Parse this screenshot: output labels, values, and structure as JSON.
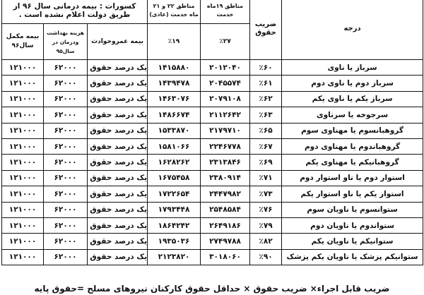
{
  "header": {
    "grade": "درجه",
    "coefficient": "ضریب حقوق",
    "regions_19": "مناطق ۱۹ماه خدمت",
    "regions_22_21": "مناطق ۲۲ و ۲۱ ماه خدمت (عادی)",
    "deductions": "کسورات : بیمه درمانی سال ۹۶ از طریق دولت اعلام نشده است .",
    "pct_27": "٪۲۷",
    "pct_19": "٪۱۹",
    "life_insurance": "بیمه عمروحوادث",
    "health_cost": "هزینه بهداشت ودرمان در سال۹۵",
    "supplementary": "بیمه مکمل سال۹۶"
  },
  "rows": [
    {
      "grade": "سرباز یا ناوی",
      "coef": "٪۶۰",
      "r19": "۲۰۱۲۰۴۰",
      "r22": "۱۴۱۵۸۸۰",
      "life": "یک درصد حقوق پایه",
      "health": "۶۲۰۰۰",
      "supp": "۱۲۱۰۰۰"
    },
    {
      "grade": "سرباز دوم یا ناوی دوم",
      "coef": "٪۶۱",
      "r19": "۲۰۴۵۵۷۴",
      "r22": "۱۴۳۹۴۷۸",
      "life": "یک درصد حقوق پایه",
      "health": "۶۲۰۰۰",
      "supp": "۱۲۱۰۰۰"
    },
    {
      "grade": "سرباز یکم یا ناوی یکم",
      "coef": "٪۶۲",
      "r19": "۲۰۷۹۱۰۸",
      "r22": "۱۴۶۳۰۷۶",
      "life": "یک درصد حقوق پایه",
      "health": "۶۲۰۰۰",
      "supp": "۱۲۱۰۰۰"
    },
    {
      "grade": "سرجوخه یا سرناوی",
      "coef": "٪۶۳",
      "r19": "۲۱۱۲۶۴۲",
      "r22": "۱۴۸۶۶۷۴",
      "life": "یک درصد حقوق پایه",
      "health": "۶۲۰۰۰",
      "supp": "۱۲۱۰۰۰"
    },
    {
      "grade": "گروهبانسوم یا مهناوی سوم",
      "coef": "٪۶۵",
      "r19": "۲۱۷۹۷۱۰",
      "r22": "۱۵۳۳۸۷۰",
      "life": "یک درصد حقوق پایه",
      "health": "۶۲۰۰۰",
      "supp": "۱۲۱۰۰۰"
    },
    {
      "grade": "گروهباندوم یا مهناوی دوم",
      "coef": "٪۶۷",
      "r19": "۲۲۴۶۷۷۸",
      "r22": "۱۵۸۱۰۶۶",
      "life": "یک درصد حقوق پایه",
      "health": "۶۲۰۰۰",
      "supp": "۱۲۱۰۰۰"
    },
    {
      "grade": "گروهبانیکم یا مهناوی یکم",
      "coef": "٪۶۹",
      "r19": "۲۳۱۳۸۴۶",
      "r22": "۱۶۲۸۲۶۲",
      "life": "یک درصد حقوق پایه",
      "health": "۶۲۰۰۰",
      "supp": "۱۲۱۰۰۰"
    },
    {
      "grade": "استوار دوم یا ناو استوار دوم",
      "coef": "٪۷۱",
      "r19": "۲۳۸۰۹۱۴",
      "r22": "۱۶۷۵۴۵۸",
      "life": "یک درصد حقوق پایه",
      "health": "۶۲۰۰۰",
      "supp": "۱۲۱۰۰۰"
    },
    {
      "grade": "استوار یکم یا ناو استوار یکم",
      "coef": "٪۷۳",
      "r19": "۲۴۴۷۹۸۲",
      "r22": "۱۷۲۲۶۵۴",
      "life": "یک درصد حقوق پایه",
      "health": "۶۲۰۰۰",
      "supp": "۱۲۱۰۰۰"
    },
    {
      "grade": "ستوانسوم یا ناویان سوم",
      "coef": "٪۷۶",
      "r19": "۲۵۴۸۵۸۴",
      "r22": "۱۷۹۳۴۴۸",
      "life": "یک درصد حقوق پایه",
      "health": "۶۲۰۰۰",
      "supp": "۱۲۱۰۰۰"
    },
    {
      "grade": "ستواندوم یا ناویان دوم",
      "coef": "٪۷۹",
      "r19": "۲۶۴۹۱۸۶",
      "r22": "۱۸۶۴۲۴۲",
      "life": "یک درصد حقوق پایه",
      "health": "۶۲۰۰۰",
      "supp": "۱۲۱۰۰۰"
    },
    {
      "grade": "ستوانیکم یا ناویان یکم",
      "coef": "٪۸۲",
      "r19": "۲۷۴۹۷۸۸",
      "r22": "۱۹۳۵۰۳۶",
      "life": "یک درصد حقوق پایه",
      "health": "۶۲۰۰۰",
      "supp": "۱۲۱۰۰۰"
    },
    {
      "grade": "ستوانیکم پزشک یا ناویان یکم پزشک",
      "coef": "٪۹۰",
      "r19": "۳۰۱۸۰۶۰",
      "r22": "۲۱۲۳۸۲۰",
      "life": "یک درصد حقوق پایه",
      "health": "۶۲۰۰۰",
      "supp": "۱۲۱۰۰۰"
    }
  ],
  "footer": "ضریب قابل اجراء× ضریب حقوق × حداقل حقوق کارکنان نیروهای مسلح =حقوق پایه"
}
